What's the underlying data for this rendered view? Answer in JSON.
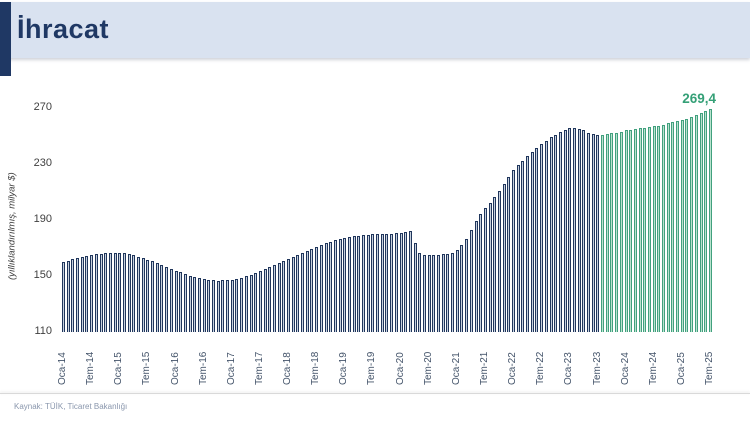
{
  "header": {
    "title": "İhracat"
  },
  "footer": {
    "source": "Kaynak: TÜİK, Ticaret Bakanlığı"
  },
  "chart_data": {
    "type": "bar",
    "title": "İhracat",
    "ylabel": "(yıllıklandırılmış, milyar $)",
    "ylim": [
      110,
      270
    ],
    "yticks": [
      270,
      230,
      190,
      150,
      110
    ],
    "grid": false,
    "legend": false,
    "x_tick_every": 6,
    "x_tick_labels": [
      "Oca-14",
      "Tem-14",
      "Oca-15",
      "Tem-15",
      "Oca-16",
      "Tem-16",
      "Oca-17",
      "Tem-17",
      "Oca-18",
      "Tem-18",
      "Oca-19",
      "Tem-19",
      "Oca-20",
      "Tem-20",
      "Oca-21",
      "Tem-21",
      "Oca-22",
      "Tem-22",
      "Oca-23",
      "Tem-23",
      "Oca-24",
      "Tem-24",
      "Oca-25",
      "Tem-25"
    ],
    "values": [
      160.2,
      161.0,
      161.9,
      162.7,
      163.5,
      164.2,
      164.9,
      165.5,
      166.0,
      166.4,
      166.6,
      166.7,
      166.6,
      166.2,
      165.6,
      164.8,
      163.9,
      162.9,
      161.8,
      160.6,
      159.3,
      158.0,
      156.6,
      155.2,
      153.9,
      152.6,
      151.4,
      150.3,
      149.3,
      148.4,
      147.7,
      147.2,
      146.9,
      146.8,
      146.9,
      147.1,
      147.5,
      148.1,
      148.9,
      149.8,
      150.9,
      152.1,
      153.4,
      154.8,
      156.2,
      157.7,
      159.2,
      160.7,
      162.2,
      163.7,
      165.2,
      166.7,
      168.1,
      169.5,
      170.8,
      172.1,
      173.3,
      174.4,
      175.4,
      176.3,
      177.1,
      177.8,
      178.4,
      178.9,
      179.3,
      179.6,
      179.8,
      180.0,
      180.1,
      180.2,
      180.3,
      180.4,
      180.7,
      181.4,
      182.3,
      173.5,
      166.8,
      165.3,
      165.0,
      164.8,
      165.0,
      165.4,
      165.9,
      166.5,
      168.8,
      172.0,
      176.5,
      183.0,
      189.5,
      194.5,
      198.5,
      202.5,
      206.5,
      211.0,
      216.0,
      221.0,
      226.0,
      229.5,
      232.5,
      235.5,
      238.5,
      241.5,
      244.0,
      246.5,
      249.0,
      251.0,
      253.0,
      254.5,
      255.5,
      255.5,
      255.0,
      254.0,
      252.5,
      251.5,
      250.5,
      251.0,
      251.5,
      252.0,
      252.5,
      253.0,
      254.0,
      254.5,
      255.0,
      255.5,
      256.0,
      256.5,
      257.0,
      257.5,
      258.2,
      259.0,
      259.8,
      260.6,
      261.5,
      262.5,
      263.6,
      264.8,
      266.2,
      267.7,
      269.4
    ],
    "highlight_from_index": 115,
    "series_colors": {
      "historical_outline": "#20365c",
      "historical_fill": "#c6d0de",
      "recent_outline": "#41a07e",
      "recent_fill": "#b9e2ce"
    },
    "annotation": {
      "text": "269,4",
      "value": 269.4,
      "color": "#35a077"
    }
  }
}
